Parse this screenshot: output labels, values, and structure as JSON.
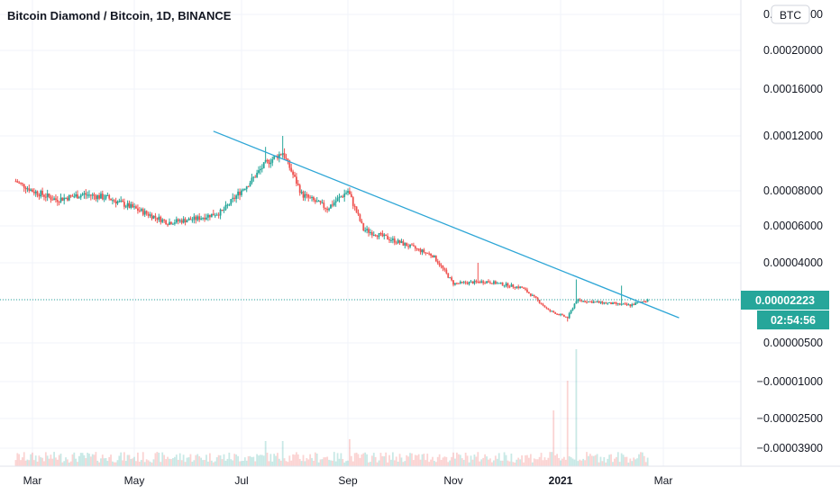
{
  "header": {
    "title": "Bitcoin Diamond / Bitcoin, 1D, BINANCE"
  },
  "currency_badge": "BTC",
  "price_badge": {
    "price": "0.00002223",
    "countdown": "02:54:56"
  },
  "colors": {
    "up": "#26a69a",
    "down": "#ef5350",
    "trendline": "#2ea6d6",
    "price_badge": "#26a69a",
    "grid": "#f0f3fa",
    "axis_text": "#131722"
  },
  "chart_data": {
    "type": "candlestick",
    "title": "Bitcoin Diamond / Bitcoin, 1D, BINANCE",
    "y_axis_ticks": [
      "0.00024000",
      "0.00020000",
      "0.00016000",
      "0.00012000",
      "0.00008000",
      "0.00006000",
      "0.00004000",
      "0.00002223",
      "0.00000500",
      "−0.00001000",
      "−0.00002500",
      "−0.00003900"
    ],
    "y_axis_scale": "non-linear (percent-like)",
    "x_axis_ticks": [
      "Mar",
      "May",
      "Jul",
      "Sep",
      "Nov",
      "2021",
      "Mar"
    ],
    "x_range": [
      "2020-02-20",
      "2021-03-20"
    ],
    "last_price": 2.223e-05,
    "grid": true,
    "price_trajectory": [
      {
        "date": "2020-02-20",
        "price": 8.7e-05
      },
      {
        "date": "2020-03-01",
        "price": 8e-05
      },
      {
        "date": "2020-03-15",
        "price": 7.5e-05
      },
      {
        "date": "2020-04-01",
        "price": 7.8e-05
      },
      {
        "date": "2020-04-15",
        "price": 7.6e-05
      },
      {
        "date": "2020-05-01",
        "price": 7e-05
      },
      {
        "date": "2020-05-20",
        "price": 6.2e-05
      },
      {
        "date": "2020-06-05",
        "price": 6.4e-05
      },
      {
        "date": "2020-06-20",
        "price": 6.8e-05
      },
      {
        "date": "2020-07-05",
        "price": 8.5e-05
      },
      {
        "date": "2020-07-15",
        "price": 0.0001
      },
      {
        "date": "2020-07-25",
        "price": 0.000108
      },
      {
        "date": "2020-08-05",
        "price": 7.8e-05
      },
      {
        "date": "2020-08-20",
        "price": 7e-05
      },
      {
        "date": "2020-09-01",
        "price": 8e-05
      },
      {
        "date": "2020-09-10",
        "price": 5.8e-05
      },
      {
        "date": "2020-10-01",
        "price": 5.1e-05
      },
      {
        "date": "2020-10-20",
        "price": 4.4e-05
      },
      {
        "date": "2020-11-01",
        "price": 3e-05
      },
      {
        "date": "2020-11-20",
        "price": 3.1e-05
      },
      {
        "date": "2020-12-10",
        "price": 2.8e-05
      },
      {
        "date": "2020-12-25",
        "price": 1.8e-05
      },
      {
        "date": "2021-01-05",
        "price": 1.5e-05
      },
      {
        "date": "2021-01-10",
        "price": 2.2e-05
      },
      {
        "date": "2021-01-25",
        "price": 2.1e-05
      },
      {
        "date": "2021-02-10",
        "price": 2e-05
      },
      {
        "date": "2021-02-20",
        "price": 2.22e-05
      }
    ],
    "trendline": {
      "start": {
        "date": "2020-06-15",
        "price": 0.000124
      },
      "end": {
        "date": "2021-03-10",
        "price": 1.5e-05
      }
    }
  }
}
